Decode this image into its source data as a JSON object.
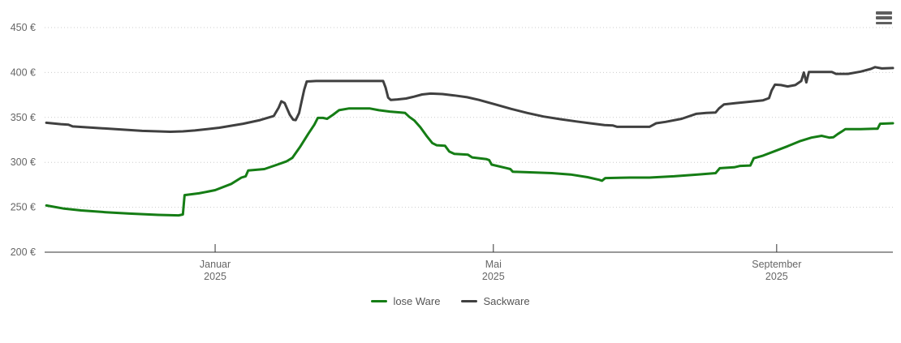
{
  "chart_data": {
    "type": "line",
    "title": "",
    "xlabel": "",
    "ylabel": "",
    "grid": "dotted horizontal",
    "legend_position": "bottom-center",
    "colors": {
      "grid_line": "#cccccc",
      "axis_line": "#333333",
      "tick_label": "#666666",
      "legend_text": "#555555",
      "menu_icon": "#5f5f5f",
      "background": "#ffffff"
    },
    "y_axis": {
      "min": 200,
      "max": 450,
      "suffix": " €",
      "ticks": [
        {
          "value": 450,
          "label": "450 €"
        },
        {
          "value": 400,
          "label": "400 €"
        },
        {
          "value": 350,
          "label": "350 €"
        },
        {
          "value": 300,
          "label": "300 €"
        },
        {
          "value": 250,
          "label": "250 €"
        },
        {
          "value": 200,
          "label": "200 €"
        }
      ]
    },
    "x_axis": {
      "range_note": "ca. Oktober 2024 bis Oktober 2025",
      "ticks": [
        {
          "pos": 0.201,
          "label": "Januar",
          "sublabel": "2025"
        },
        {
          "pos": 0.529,
          "label": "Mai",
          "sublabel": "2025"
        },
        {
          "pos": 0.863,
          "label": "September",
          "sublabel": "2025"
        }
      ]
    },
    "series": [
      {
        "name": "lose Ware",
        "color": "#157d15",
        "unit": "€",
        "points": [
          [
            0.002,
            252
          ],
          [
            0.023,
            248.5
          ],
          [
            0.043,
            246.5
          ],
          [
            0.072,
            244.5
          ],
          [
            0.1,
            243
          ],
          [
            0.134,
            241.5
          ],
          [
            0.158,
            241
          ],
          [
            0.163,
            242
          ],
          [
            0.165,
            263.5
          ],
          [
            0.182,
            265.5
          ],
          [
            0.201,
            269
          ],
          [
            0.22,
            276
          ],
          [
            0.232,
            283
          ],
          [
            0.237,
            284.5
          ],
          [
            0.24,
            291
          ],
          [
            0.259,
            292.5
          ],
          [
            0.273,
            297
          ],
          [
            0.285,
            301
          ],
          [
            0.292,
            305
          ],
          [
            0.301,
            317
          ],
          [
            0.311,
            332
          ],
          [
            0.318,
            342
          ],
          [
            0.322,
            349.5
          ],
          [
            0.328,
            349.5
          ],
          [
            0.333,
            348.5
          ],
          [
            0.34,
            353
          ],
          [
            0.347,
            358
          ],
          [
            0.359,
            360
          ],
          [
            0.383,
            360
          ],
          [
            0.394,
            358
          ],
          [
            0.407,
            356.5
          ],
          [
            0.42,
            355.5
          ],
          [
            0.425,
            355
          ],
          [
            0.43,
            350.5
          ],
          [
            0.436,
            346.5
          ],
          [
            0.443,
            339
          ],
          [
            0.451,
            328.5
          ],
          [
            0.457,
            321.5
          ],
          [
            0.462,
            319
          ],
          [
            0.472,
            318.5
          ],
          [
            0.477,
            312
          ],
          [
            0.483,
            309.5
          ],
          [
            0.499,
            308.5
          ],
          [
            0.504,
            305.5
          ],
          [
            0.521,
            303.5
          ],
          [
            0.524,
            302.5
          ],
          [
            0.527,
            297.5
          ],
          [
            0.545,
            293.5
          ],
          [
            0.549,
            292.5
          ],
          [
            0.552,
            289.5
          ],
          [
            0.569,
            289
          ],
          [
            0.598,
            288
          ],
          [
            0.62,
            286.5
          ],
          [
            0.64,
            283.5
          ],
          [
            0.654,
            280.5
          ],
          [
            0.657,
            279.5
          ],
          [
            0.661,
            282.5
          ],
          [
            0.69,
            283
          ],
          [
            0.713,
            283
          ],
          [
            0.742,
            284.5
          ],
          [
            0.77,
            286.5
          ],
          [
            0.791,
            288
          ],
          [
            0.796,
            293.5
          ],
          [
            0.813,
            294.5
          ],
          [
            0.82,
            296
          ],
          [
            0.832,
            296.5
          ],
          [
            0.836,
            304.5
          ],
          [
            0.847,
            307.5
          ],
          [
            0.861,
            312.5
          ],
          [
            0.876,
            318
          ],
          [
            0.89,
            323.5
          ],
          [
            0.904,
            327.5
          ],
          [
            0.916,
            329.5
          ],
          [
            0.925,
            327.5
          ],
          [
            0.93,
            328
          ],
          [
            0.935,
            331.5
          ],
          [
            0.941,
            335
          ],
          [
            0.944,
            337
          ],
          [
            0.962,
            337
          ],
          [
            0.978,
            337.5
          ],
          [
            0.982,
            337.5
          ],
          [
            0.985,
            343
          ],
          [
            1.0,
            343.5
          ]
        ]
      },
      {
        "name": "Sackware",
        "color": "#404040",
        "unit": "€",
        "points": [
          [
            0.002,
            344
          ],
          [
            0.019,
            342.5
          ],
          [
            0.028,
            342
          ],
          [
            0.033,
            340
          ],
          [
            0.057,
            338.5
          ],
          [
            0.091,
            336.5
          ],
          [
            0.115,
            335
          ],
          [
            0.134,
            334.5
          ],
          [
            0.148,
            334
          ],
          [
            0.163,
            334.5
          ],
          [
            0.177,
            335.5
          ],
          [
            0.206,
            338.5
          ],
          [
            0.234,
            343
          ],
          [
            0.254,
            347
          ],
          [
            0.27,
            351.5
          ],
          [
            0.276,
            361
          ],
          [
            0.279,
            368
          ],
          [
            0.283,
            366
          ],
          [
            0.289,
            353
          ],
          [
            0.293,
            347.5
          ],
          [
            0.296,
            347
          ],
          [
            0.3,
            355
          ],
          [
            0.303,
            368
          ],
          [
            0.306,
            381
          ],
          [
            0.309,
            390
          ],
          [
            0.32,
            390.5
          ],
          [
            0.399,
            390.5
          ],
          [
            0.402,
            383
          ],
          [
            0.405,
            372
          ],
          [
            0.408,
            369.5
          ],
          [
            0.416,
            370
          ],
          [
            0.426,
            371
          ],
          [
            0.435,
            373
          ],
          [
            0.445,
            375.5
          ],
          [
            0.455,
            376.5
          ],
          [
            0.469,
            376
          ],
          [
            0.483,
            374.5
          ],
          [
            0.498,
            372.5
          ],
          [
            0.512,
            369.5
          ],
          [
            0.531,
            364.5
          ],
          [
            0.55,
            359.5
          ],
          [
            0.569,
            355
          ],
          [
            0.588,
            351
          ],
          [
            0.608,
            348
          ],
          [
            0.627,
            345.5
          ],
          [
            0.643,
            343.5
          ],
          [
            0.66,
            341.5
          ],
          [
            0.67,
            341
          ],
          [
            0.675,
            339.5
          ],
          [
            0.708,
            339.5
          ],
          [
            0.713,
            339.5
          ],
          [
            0.716,
            341
          ],
          [
            0.721,
            343.5
          ],
          [
            0.732,
            345
          ],
          [
            0.751,
            348.5
          ],
          [
            0.768,
            354
          ],
          [
            0.78,
            355
          ],
          [
            0.791,
            355.5
          ],
          [
            0.795,
            360
          ],
          [
            0.801,
            364.5
          ],
          [
            0.815,
            366
          ],
          [
            0.832,
            367.5
          ],
          [
            0.847,
            369
          ],
          [
            0.854,
            371.5
          ],
          [
            0.857,
            380
          ],
          [
            0.861,
            386.5
          ],
          [
            0.868,
            386
          ],
          [
            0.876,
            384.5
          ],
          [
            0.885,
            386
          ],
          [
            0.892,
            390.5
          ],
          [
            0.895,
            400
          ],
          [
            0.898,
            389
          ],
          [
            0.901,
            400.5
          ],
          [
            0.908,
            400.5
          ],
          [
            0.928,
            400.5
          ],
          [
            0.933,
            398.5
          ],
          [
            0.947,
            398.5
          ],
          [
            0.962,
            401
          ],
          [
            0.974,
            404
          ],
          [
            0.979,
            406
          ],
          [
            0.987,
            404.5
          ],
          [
            1.0,
            405
          ]
        ]
      }
    ]
  },
  "controls": {
    "export_menu_tooltip": "Chart context menu"
  }
}
